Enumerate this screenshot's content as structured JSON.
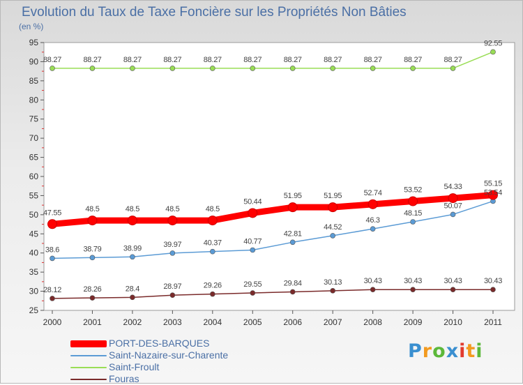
{
  "chart_data": {
    "type": "line",
    "title": "Evolution du Taux de Taxe Foncière sur les Propriétés Non Bâties",
    "ylabel": "(en %)",
    "xlabel": "",
    "ylim": [
      25,
      95
    ],
    "yticks": [
      "25",
      "30",
      "35",
      "40",
      "45",
      "50",
      "55",
      "60",
      "65",
      "70",
      "75",
      "80",
      "85",
      "90",
      "95"
    ],
    "categories": [
      "2000",
      "2001",
      "2002",
      "2003",
      "2004",
      "2005",
      "2006",
      "2007",
      "2008",
      "2009",
      "2010",
      "2011"
    ],
    "grid": false,
    "legend_position": "bottom-left",
    "series": [
      {
        "name": "PORT-DES-BARQUES",
        "color": "#ff0000",
        "values": [
          47.55,
          48.5,
          48.5,
          48.5,
          48.5,
          50.44,
          51.95,
          51.95,
          52.74,
          53.52,
          54.33,
          55.15
        ],
        "labels": [
          "47.55",
          "48.5",
          "48.5",
          "48.5",
          "48.5",
          "50.44",
          "51.95",
          "51.95",
          "52.74",
          "53.52",
          "54.33",
          "55.15"
        ]
      },
      {
        "name": "Saint-Nazaire-sur-Charente",
        "color": "#5b9bd5",
        "values": [
          38.6,
          38.79,
          38.99,
          39.97,
          40.37,
          40.77,
          42.81,
          44.52,
          46.3,
          48.15,
          50.07,
          53.54
        ],
        "labels": [
          "38.6",
          "38.79",
          "38.99",
          "39.97",
          "40.37",
          "40.77",
          "42.81",
          "44.52",
          "46.3",
          "48.15",
          "50.07",
          "53.54"
        ]
      },
      {
        "name": "Saint-Froult",
        "color": "#99dd55",
        "values": [
          88.27,
          88.27,
          88.27,
          88.27,
          88.27,
          88.27,
          88.27,
          88.27,
          88.27,
          88.27,
          88.27,
          92.55
        ],
        "labels": [
          "88.27",
          "88.27",
          "88.27",
          "88.27",
          "88.27",
          "88.27",
          "88.27",
          "88.27",
          "88.27",
          "88.27",
          "88.27",
          "92.55"
        ]
      },
      {
        "name": "Fouras",
        "color": "#7a2a2a",
        "values": [
          28.12,
          28.26,
          28.4,
          28.97,
          29.26,
          29.55,
          29.84,
          30.13,
          30.43,
          30.43,
          30.43,
          30.43
        ],
        "labels": [
          "28.12",
          "28.26",
          "28.4",
          "28.97",
          "29.26",
          "29.55",
          "29.84",
          "30.13",
          "30.43",
          "30.43",
          "30.43",
          "30.43"
        ]
      }
    ]
  },
  "logo": {
    "letters": [
      "P",
      "r",
      "o",
      "x",
      "i",
      "t",
      "i"
    ],
    "colors": [
      "#3a8fd0",
      "#f29a1f",
      "#5cb83a",
      "#3a8fd0",
      "#e23b2e",
      "#f29a1f",
      "#5cb83a"
    ]
  }
}
